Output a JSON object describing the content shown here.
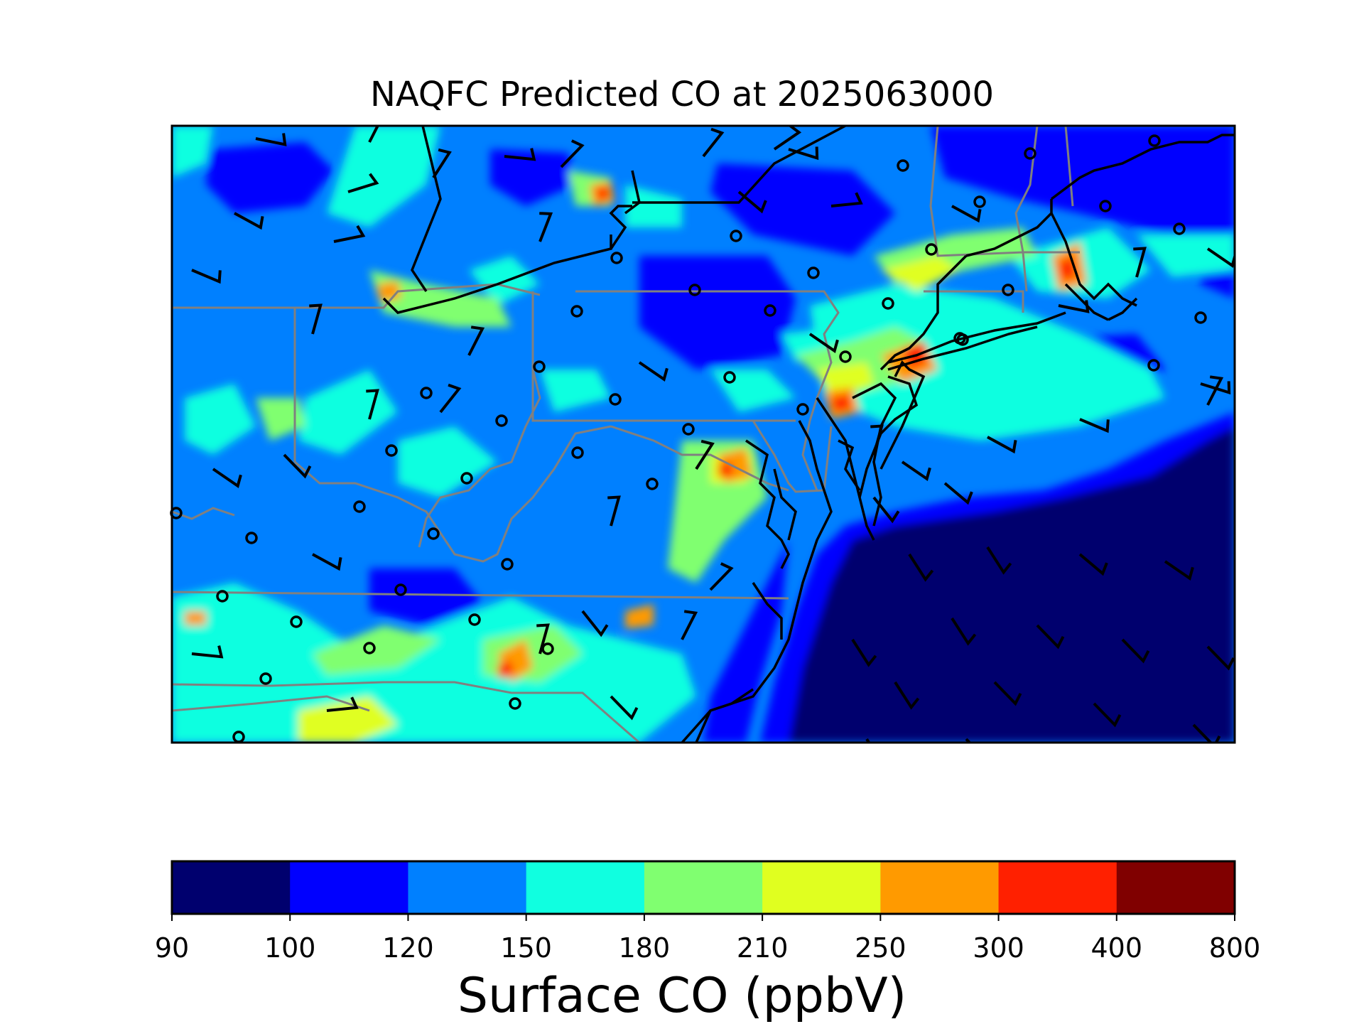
{
  "title": "NAQFC Predicted CO at 2025063000",
  "colorbar": {
    "label": "Surface CO (ppbV)",
    "levels": [
      "90",
      "100",
      "120",
      "150",
      "180",
      "210",
      "250",
      "300",
      "400",
      "800"
    ],
    "colors": [
      "#00006e",
      "#0000ff",
      "#0080ff",
      "#10ffe0",
      "#80ff70",
      "#e0ff20",
      "#ff9a00",
      "#ff2000",
      "#800000"
    ]
  },
  "map": {
    "region": "Mid-Atlantic / Northeast US",
    "features": [
      "CO concentration shading",
      "state boundaries",
      "coastlines",
      "wind barbs",
      "station markers"
    ],
    "colors": {
      "state_lines": "#808080",
      "coast": "#000000",
      "frame": "#000000"
    }
  },
  "chart_data": {
    "type": "heatmap",
    "title": "NAQFC Predicted CO at 2025063000",
    "colorbar_label": "Surface CO (ppbV)",
    "levels": [
      90,
      100,
      120,
      150,
      180,
      210,
      250,
      300,
      400,
      800
    ],
    "dominant_ranges": {
      "inland": "120-180",
      "offshore": "90-100",
      "urban_corridor_max": "300-400"
    }
  }
}
